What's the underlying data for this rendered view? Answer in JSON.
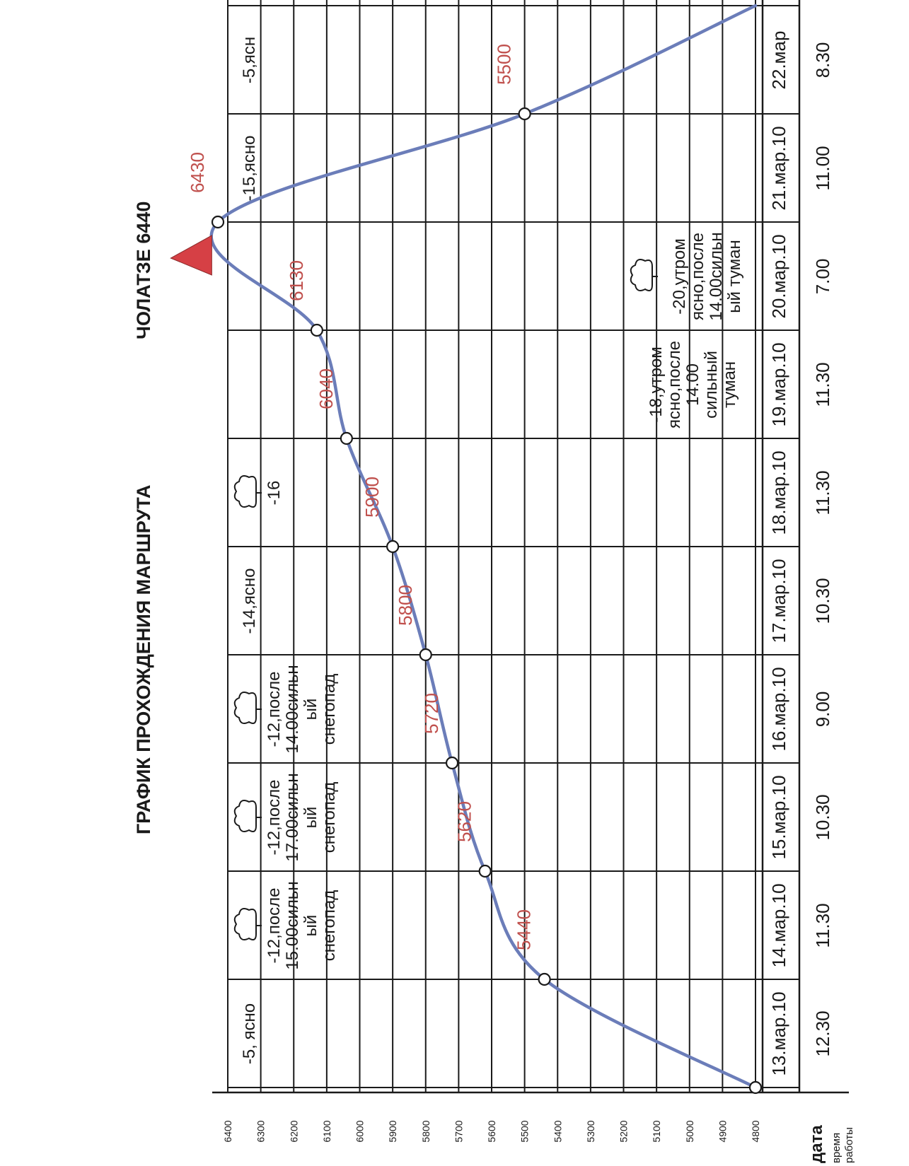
{
  "titles": {
    "main": "ГРАФИК ПРОХОЖДЕНИЯ МАРШРУТА",
    "peak": "ЧОЛАТЗЕ 6440"
  },
  "row_headers": {
    "date": "дата",
    "time_line1": "время",
    "time_line2": "работы"
  },
  "chart_data": {
    "type": "line",
    "title": "ГРАФИК ПРОХОЖДЕНИЯ МАРШРУТА",
    "orientation": "rotated 90° counter-clockwise (read with dates along the bottom-to-top page direction)",
    "y_ticks": [
      4800,
      4900,
      5000,
      5100,
      5200,
      5300,
      5400,
      5500,
      5600,
      5700,
      5800,
      5900,
      6000,
      6100,
      6200,
      6300,
      6400
    ],
    "ylim": [
      4800,
      6440
    ],
    "grid": true,
    "days": [
      {
        "date": "13.мар.10",
        "time": "12.30",
        "weather": [
          "-5, ясно"
        ],
        "cloud_icon": false
      },
      {
        "date": "14.мар.10",
        "time": "11.30",
        "weather": [
          "-12,после",
          "15.00сильн",
          "ый",
          "снегопад"
        ],
        "cloud_icon": true
      },
      {
        "date": "15.мар.10",
        "time": "10.30",
        "weather": [
          "-12,после",
          "17.00сильн",
          "ый",
          "снегопад"
        ],
        "cloud_icon": true
      },
      {
        "date": "16.мар.10",
        "time": "9.00",
        "weather": [
          "-12,после",
          "14.00сильн",
          "ый",
          "снегопад"
        ],
        "cloud_icon": true
      },
      {
        "date": "17.мар.10",
        "time": "10.30",
        "weather": [
          "-14,ясно"
        ],
        "cloud_icon": false
      },
      {
        "date": "18.мар.10",
        "time": "11.30",
        "weather": [
          "-16"
        ],
        "cloud_icon": true
      },
      {
        "date": "19.мар.10",
        "time": "11.30",
        "weather": [
          "-18,утром",
          "ясно,после",
          "14.00",
          "сильный",
          "туман"
        ],
        "cloud_icon": false
      },
      {
        "date": "20.мар.10",
        "time": "7.00",
        "weather": [
          "-20,утром",
          "ясно,после",
          "14.00сильн",
          "ый туман"
        ],
        "cloud_icon": true
      },
      {
        "date": "21.мар.10",
        "time": "11.00",
        "weather": [
          "-15,ясно"
        ],
        "cloud_icon": false
      },
      {
        "date": "22.мар",
        "time": "8.30",
        "weather": [
          "-5,ясн"
        ],
        "cloud_icon": false
      }
    ],
    "series": [
      {
        "points": [
          {
            "day": 0.0,
            "alt": 4800,
            "label": ""
          },
          {
            "day": 1.0,
            "alt": 5440,
            "label": "5440"
          },
          {
            "day": 2.0,
            "alt": 5620,
            "label": "5620"
          },
          {
            "day": 3.0,
            "alt": 5720,
            "label": "5720"
          },
          {
            "day": 4.0,
            "alt": 5800,
            "label": "5800"
          },
          {
            "day": 5.0,
            "alt": 5900,
            "label": "5900"
          },
          {
            "day": 6.0,
            "alt": 6040,
            "label": "6040"
          },
          {
            "day": 7.0,
            "alt": 6130,
            "label": "6130"
          },
          {
            "day": 8.0,
            "alt": 6430,
            "label": "6430"
          },
          {
            "day": 9.0,
            "alt": 5500,
            "label": "5500"
          },
          {
            "day": 10.0,
            "alt": 4800,
            "label": "4800"
          }
        ]
      }
    ],
    "summit_marker_alt": 6440
  },
  "colors": {
    "line": "#6b7db9",
    "labels": "#c0504d",
    "summit": "#d64045"
  }
}
